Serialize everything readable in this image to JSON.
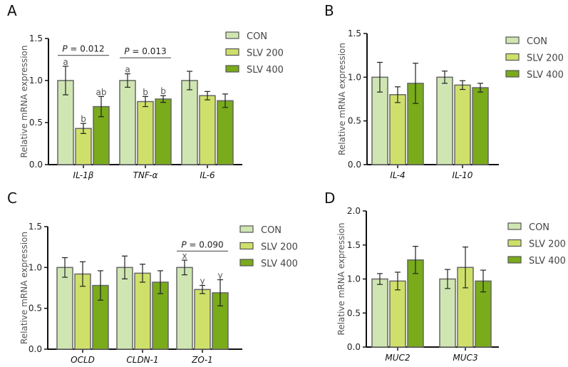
{
  "colors": {
    "CON": "#cfe6b2",
    "SLV 200": "#cfe06a",
    "SLV 400": "#79ab1a",
    "stroke": "#555555",
    "text": "#555555"
  },
  "chart_data": [
    {
      "panel": "A",
      "type": "bar",
      "ylabel": "Relative mRNA expression",
      "ylim": [
        0,
        1.5
      ],
      "yticks": [
        "0.0",
        "0.5",
        "1.0",
        "1.5"
      ],
      "ytick_values": [
        0,
        0.5,
        1.0,
        1.5
      ],
      "legend": [
        "CON",
        "SLV 200",
        "SLV 400"
      ],
      "legend_position": "top-right",
      "categories": [
        "IL-1β",
        "TNF-α",
        "IL-6"
      ],
      "series": [
        {
          "name": "CON",
          "values": [
            1.0,
            1.0,
            1.0
          ],
          "errors": [
            0.17,
            0.08,
            0.11
          ]
        },
        {
          "name": "SLV 200",
          "values": [
            0.43,
            0.75,
            0.82
          ],
          "errors": [
            0.06,
            0.06,
            0.05
          ]
        },
        {
          "name": "SLV 400",
          "values": [
            0.69,
            0.78,
            0.76
          ],
          "errors": [
            0.12,
            0.04,
            0.08
          ]
        }
      ],
      "letters": [
        [
          "a",
          "b",
          "ab"
        ],
        [
          "a",
          "b",
          "b"
        ],
        [
          "",
          "",
          ""
        ]
      ],
      "brackets": [
        {
          "category": 0,
          "label_prefix": "P",
          "label": " = 0.012",
          "y": 1.3
        },
        {
          "category": 1,
          "label_prefix": "P",
          "label": " = 0.013",
          "y": 1.27
        }
      ]
    },
    {
      "panel": "B",
      "type": "bar",
      "ylabel": "Relative mRNA expression",
      "ylim": [
        0,
        1.5
      ],
      "yticks": [
        "0.0",
        "0.5",
        "1.0",
        "1.5"
      ],
      "ytick_values": [
        0,
        0.5,
        1.0,
        1.5
      ],
      "legend": [
        "CON",
        "SLV 200",
        "SLV 400"
      ],
      "legend_position": "top-right",
      "categories": [
        "IL-4",
        "IL-10"
      ],
      "series": [
        {
          "name": "CON",
          "values": [
            1.0,
            1.0
          ],
          "errors": [
            0.17,
            0.07
          ]
        },
        {
          "name": "SLV 200",
          "values": [
            0.8,
            0.91
          ],
          "errors": [
            0.09,
            0.05
          ]
        },
        {
          "name": "SLV 400",
          "values": [
            0.93,
            0.88
          ],
          "errors": [
            0.23,
            0.05
          ]
        }
      ],
      "letters": [],
      "brackets": []
    },
    {
      "panel": "C",
      "type": "bar",
      "ylabel": "Relative mRNA expression",
      "ylim": [
        0,
        1.5
      ],
      "yticks": [
        "0.0",
        "0.5",
        "1.0",
        "1.5"
      ],
      "ytick_values": [
        0,
        0.5,
        1.0,
        1.5
      ],
      "legend": [
        "CON",
        "SLV 200",
        "SLV 400"
      ],
      "legend_position": "top-right",
      "categories": [
        "OCLD",
        "CLDN-1",
        "ZO-1"
      ],
      "series": [
        {
          "name": "CON",
          "values": [
            1.0,
            1.0,
            1.0
          ],
          "errors": [
            0.12,
            0.14,
            0.09
          ]
        },
        {
          "name": "SLV 200",
          "values": [
            0.92,
            0.93,
            0.73
          ],
          "errors": [
            0.15,
            0.11,
            0.05
          ]
        },
        {
          "name": "SLV 400",
          "values": [
            0.78,
            0.82,
            0.69
          ],
          "errors": [
            0.18,
            0.14,
            0.16
          ]
        }
      ],
      "letters": [
        [
          "",
          "",
          ""
        ],
        [
          "",
          "",
          ""
        ],
        [
          "x",
          "y",
          "y"
        ]
      ],
      "brackets": [
        {
          "category": 2,
          "label_prefix": "P",
          "label": " = 0.090",
          "y": 1.2
        }
      ]
    },
    {
      "panel": "D",
      "type": "bar",
      "ylabel": "Relative mRNA expression",
      "ylim": [
        0,
        2.0
      ],
      "yticks": [
        "0.0",
        "0.5",
        "1.0",
        "1.5",
        "2.0"
      ],
      "ytick_values": [
        0,
        0.5,
        1.0,
        1.5,
        2.0
      ],
      "legend": [
        "CON",
        "SLV 200",
        "SLV 400"
      ],
      "legend_position": "top-right",
      "categories": [
        "MUC2",
        "MUC3"
      ],
      "series": [
        {
          "name": "CON",
          "values": [
            1.0,
            1.0
          ],
          "errors": [
            0.08,
            0.14
          ]
        },
        {
          "name": "SLV 200",
          "values": [
            0.97,
            1.17
          ],
          "errors": [
            0.13,
            0.3
          ]
        },
        {
          "name": "SLV 400",
          "values": [
            1.28,
            0.97
          ],
          "errors": [
            0.2,
            0.16
          ]
        }
      ],
      "letters": [],
      "brackets": []
    }
  ]
}
